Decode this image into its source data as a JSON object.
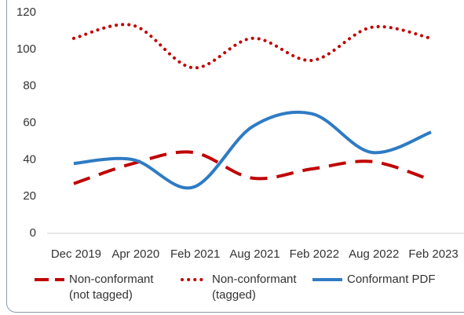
{
  "chart_data": {
    "type": "line",
    "categories": [
      "Dec 2019",
      "Apr 2020",
      "Feb 2021",
      "Aug 2021",
      "Feb 2022",
      "Aug 2022",
      "Feb 2023"
    ],
    "series": [
      {
        "name": "Non-conformant (not tagged)",
        "color": "#c00000",
        "style": "dashed",
        "values": [
          27,
          38,
          44,
          30,
          35,
          39,
          29
        ]
      },
      {
        "name": "Non-conformant (tagged)",
        "color": "#c00000",
        "style": "dotted",
        "values": [
          106,
          113,
          90,
          106,
          94,
          112,
          106
        ]
      },
      {
        "name": "Conformant PDF",
        "color": "#2e7bc4",
        "style": "solid",
        "values": [
          38,
          40,
          25,
          58,
          65,
          44,
          55
        ]
      }
    ],
    "ylim": [
      0,
      120
    ],
    "yticks": [
      0,
      20,
      40,
      60,
      80,
      100,
      120
    ],
    "grid": false,
    "smooth": true,
    "legend": "bottom"
  }
}
